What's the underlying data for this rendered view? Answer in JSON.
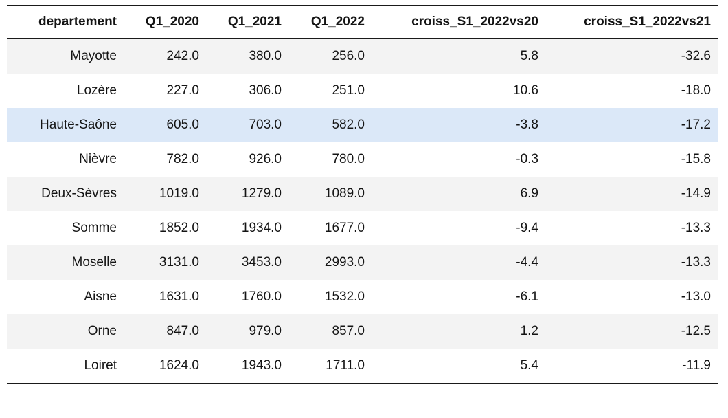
{
  "colors": {
    "stripe_gray": "#f3f3f3",
    "highlight_blue": "#dbe8f8",
    "rule_dark": "#1a1a1a",
    "text": "#141414"
  },
  "table": {
    "columns": [
      "departement",
      "Q1_2020",
      "Q1_2021",
      "Q1_2022",
      "croiss_S1_2022vs20",
      "croiss_S1_2022vs21"
    ],
    "highlighted_row_index": 2,
    "rows": [
      [
        "Mayotte",
        "242.0",
        "380.0",
        "256.0",
        "5.8",
        "-32.6"
      ],
      [
        "Lozère",
        "227.0",
        "306.0",
        "251.0",
        "10.6",
        "-18.0"
      ],
      [
        "Haute-Saône",
        "605.0",
        "703.0",
        "582.0",
        "-3.8",
        "-17.2"
      ],
      [
        "Nièvre",
        "782.0",
        "926.0",
        "780.0",
        "-0.3",
        "-15.8"
      ],
      [
        "Deux-Sèvres",
        "1019.0",
        "1279.0",
        "1089.0",
        "6.9",
        "-14.9"
      ],
      [
        "Somme",
        "1852.0",
        "1934.0",
        "1677.0",
        "-9.4",
        "-13.3"
      ],
      [
        "Moselle",
        "3131.0",
        "3453.0",
        "2993.0",
        "-4.4",
        "-13.3"
      ],
      [
        "Aisne",
        "1631.0",
        "1760.0",
        "1532.0",
        "-6.1",
        "-13.0"
      ],
      [
        "Orne",
        "847.0",
        "979.0",
        "857.0",
        "1.2",
        "-12.5"
      ],
      [
        "Loiret",
        "1624.0",
        "1943.0",
        "1711.0",
        "5.4",
        "-11.9"
      ]
    ]
  },
  "chart_data": {
    "type": "table",
    "columns": [
      "departement",
      "Q1_2020",
      "Q1_2021",
      "Q1_2022",
      "croiss_S1_2022vs20",
      "croiss_S1_2022vs21"
    ],
    "highlighted_row": "Haute-Saône",
    "rows": [
      {
        "departement": "Mayotte",
        "Q1_2020": 242.0,
        "Q1_2021": 380.0,
        "Q1_2022": 256.0,
        "croiss_S1_2022vs20": 5.8,
        "croiss_S1_2022vs21": -32.6
      },
      {
        "departement": "Lozère",
        "Q1_2020": 227.0,
        "Q1_2021": 306.0,
        "Q1_2022": 251.0,
        "croiss_S1_2022vs20": 10.6,
        "croiss_S1_2022vs21": -18.0
      },
      {
        "departement": "Haute-Saône",
        "Q1_2020": 605.0,
        "Q1_2021": 703.0,
        "Q1_2022": 582.0,
        "croiss_S1_2022vs20": -3.8,
        "croiss_S1_2022vs21": -17.2
      },
      {
        "departement": "Nièvre",
        "Q1_2020": 782.0,
        "Q1_2021": 926.0,
        "Q1_2022": 780.0,
        "croiss_S1_2022vs20": -0.3,
        "croiss_S1_2022vs21": -15.8
      },
      {
        "departement": "Deux-Sèvres",
        "Q1_2020": 1019.0,
        "Q1_2021": 1279.0,
        "Q1_2022": 1089.0,
        "croiss_S1_2022vs20": 6.9,
        "croiss_S1_2022vs21": -14.9
      },
      {
        "departement": "Somme",
        "Q1_2020": 1852.0,
        "Q1_2021": 1934.0,
        "Q1_2022": 1677.0,
        "croiss_S1_2022vs20": -9.4,
        "croiss_S1_2022vs21": -13.3
      },
      {
        "departement": "Moselle",
        "Q1_2020": 3131.0,
        "Q1_2021": 3453.0,
        "Q1_2022": 2993.0,
        "croiss_S1_2022vs20": -4.4,
        "croiss_S1_2022vs21": -13.3
      },
      {
        "departement": "Aisne",
        "Q1_2020": 1631.0,
        "Q1_2021": 1760.0,
        "Q1_2022": 1532.0,
        "croiss_S1_2022vs20": -6.1,
        "croiss_S1_2022vs21": -13.0
      },
      {
        "departement": "Orne",
        "Q1_2020": 847.0,
        "Q1_2021": 979.0,
        "Q1_2022": 857.0,
        "croiss_S1_2022vs20": 1.2,
        "croiss_S1_2022vs21": -12.5
      },
      {
        "departement": "Loiret",
        "Q1_2020": 1624.0,
        "Q1_2021": 1943.0,
        "Q1_2022": 1711.0,
        "croiss_S1_2022vs20": 5.4,
        "croiss_S1_2022vs21": -11.9
      }
    ]
  }
}
